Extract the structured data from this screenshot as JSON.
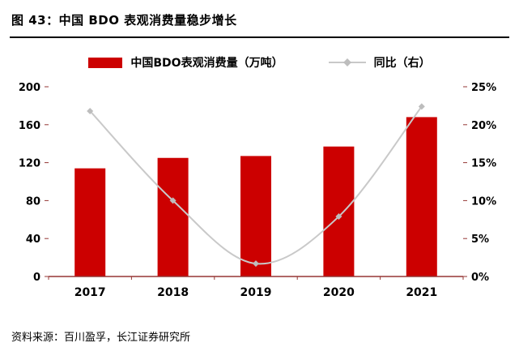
{
  "header": {
    "title": "图 43：中国 BDO 表观消费量稳步增长"
  },
  "legend": {
    "bar_label": "中国BDO表观消费量（万吨）",
    "line_label": "同比（右）"
  },
  "footer": {
    "source": "资料来源：百川盈孚，长江证券研究所"
  },
  "chart_data": {
    "type": "bar",
    "title": "中国 BDO 表观消费量稳步增长",
    "categories": [
      "2017",
      "2018",
      "2019",
      "2020",
      "2021"
    ],
    "series": [
      {
        "name": "中国BDO表观消费量（万吨）",
        "type": "bar",
        "axis": "left",
        "color": "#cc0000",
        "values": [
          114,
          125,
          127,
          137,
          168
        ]
      },
      {
        "name": "同比（右）",
        "type": "line",
        "axis": "right",
        "color": "#c9c9c9",
        "marker_color": "#bdbdbd",
        "values": [
          21.8,
          10.0,
          1.7,
          7.9,
          22.4
        ]
      }
    ],
    "left_axis": {
      "min": 0,
      "max": 200,
      "step": 40,
      "ticks": [
        "0",
        "40",
        "80",
        "120",
        "160",
        "200"
      ]
    },
    "right_axis": {
      "min": 0,
      "max": 25,
      "step": 5,
      "ticks": [
        "0%",
        "5%",
        "10%",
        "15%",
        "20%",
        "25%"
      ]
    },
    "grid": false,
    "legend_position": "top",
    "colors": {
      "axis_line": "#953735",
      "text": "#000000"
    }
  }
}
